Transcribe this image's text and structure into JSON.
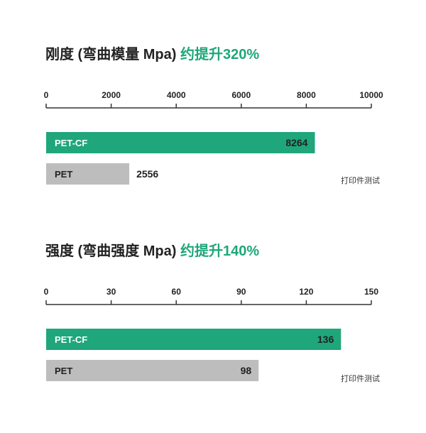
{
  "colors": {
    "accent": "#1fa67a",
    "pet_bar": "#bdbdbd",
    "text": "#222222",
    "axis": "#333333"
  },
  "chart_data": [
    {
      "type": "bar",
      "orientation": "horizontal",
      "title": "刚度 (弯曲模量 Mpa)",
      "title_highlight": "约提升320%",
      "xlim": [
        0,
        10000
      ],
      "ticks": [
        0,
        2000,
        4000,
        6000,
        8000,
        10000
      ],
      "tick_labels": [
        "0",
        "2000",
        "4000",
        "6000",
        "8000",
        "10000"
      ],
      "axis_position": "top",
      "categories": [
        "PET-CF",
        "PET"
      ],
      "values": [
        8264,
        2556
      ],
      "value_labels": [
        "8264",
        "2556"
      ],
      "footnote": "打印件测试"
    },
    {
      "type": "bar",
      "orientation": "horizontal",
      "title": "强度 (弯曲强度 Mpa)",
      "title_highlight": "约提升140%",
      "xlim": [
        0,
        150
      ],
      "ticks": [
        0,
        30,
        60,
        90,
        120,
        150
      ],
      "tick_labels": [
        "0",
        "30",
        "60",
        "90",
        "120",
        "150"
      ],
      "axis_position": "top",
      "categories": [
        "PET-CF",
        "PET"
      ],
      "values": [
        136,
        98
      ],
      "value_labels": [
        "136",
        "98"
      ],
      "footnote": "打印件测试"
    }
  ]
}
